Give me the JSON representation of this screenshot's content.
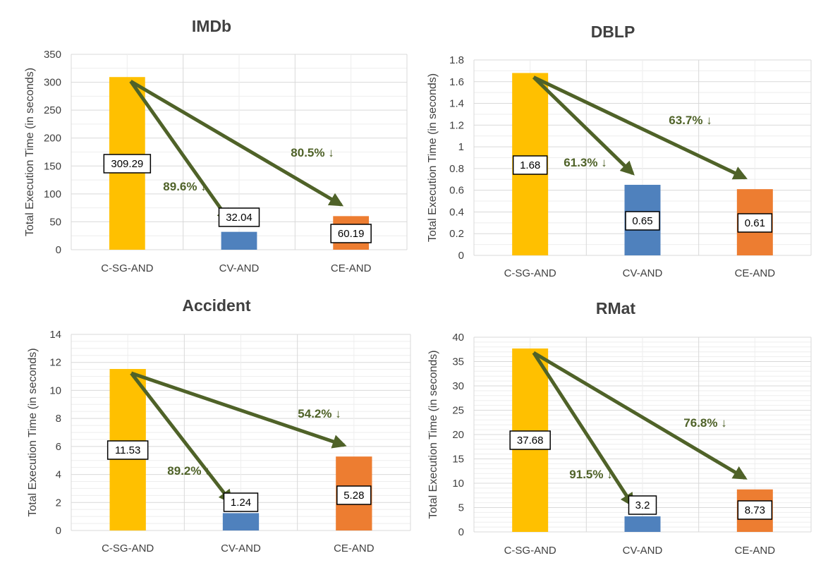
{
  "colors": {
    "c_sg_and": "#FFC000",
    "cv_and": "#4F81BD",
    "ce_and": "#ED7D31",
    "arrow": "#4F6228",
    "grid": "#D9D9D9"
  },
  "chart_data": [
    {
      "type": "bar",
      "title": "IMDb",
      "ylabel": "Total Execution Time (in seconds)",
      "categories": [
        "C-SG-AND",
        "CV-AND",
        "CE-AND"
      ],
      "values": [
        309.29,
        32.04,
        60.19
      ],
      "value_labels": [
        "309.29",
        "32.04",
        "60.19"
      ],
      "ylim": [
        0,
        350
      ],
      "yticks": [
        0,
        50,
        100,
        150,
        200,
        250,
        300,
        350
      ],
      "ytick_labels": [
        "0",
        "50",
        "100",
        "150",
        "200",
        "250",
        "300",
        "350"
      ],
      "grid": true,
      "annotations": [
        "89.6% ↓",
        "80.5% ↓"
      ]
    },
    {
      "type": "bar",
      "title": "DBLP",
      "ylabel": "Total Execution Time (in seconds)",
      "categories": [
        "C-SG-AND",
        "CV-AND",
        "CE-AND"
      ],
      "values": [
        1.68,
        0.65,
        0.61
      ],
      "value_labels": [
        "1.68",
        "0.65",
        "0.61"
      ],
      "ylim": [
        0,
        1.8
      ],
      "yticks": [
        0,
        0.2,
        0.4,
        0.6,
        0.8,
        1,
        1.2,
        1.4,
        1.6,
        1.8
      ],
      "ytick_labels": [
        "0",
        "0.2",
        "0.4",
        "0.6",
        "0.8",
        "1",
        "1.2",
        "1.4",
        "1.6",
        "1.8"
      ],
      "grid": true,
      "annotations": [
        "61.3% ↓",
        "63.7% ↓"
      ]
    },
    {
      "type": "bar",
      "title": "Accident",
      "ylabel": "Total Execution Time (in seconds)",
      "categories": [
        "C-SG-AND",
        "CV-AND",
        "CE-AND"
      ],
      "values": [
        11.53,
        1.24,
        5.28
      ],
      "value_labels": [
        "11.53",
        "1.24",
        "5.28"
      ],
      "ylim": [
        0,
        14
      ],
      "yticks": [
        0,
        2,
        4,
        6,
        8,
        10,
        12,
        14
      ],
      "ytick_labels": [
        "0",
        "2",
        "4",
        "6",
        "8",
        "10",
        "12",
        "14"
      ],
      "grid": true,
      "annotations": [
        "89.2% ↓",
        "54.2% ↓"
      ]
    },
    {
      "type": "bar",
      "title": "RMat",
      "ylabel": "Total Execution Time (in seconds)",
      "categories": [
        "C-SG-AND",
        "CV-AND",
        "CE-AND"
      ],
      "values": [
        37.68,
        3.2,
        8.73
      ],
      "value_labels": [
        "37.68",
        "3.2",
        "8.73"
      ],
      "ylim": [
        0,
        40
      ],
      "yticks": [
        0,
        5,
        10,
        15,
        20,
        25,
        30,
        35,
        40
      ],
      "ytick_labels": [
        "0",
        "5",
        "10",
        "15",
        "20",
        "25",
        "30",
        "35",
        "40"
      ],
      "grid": true,
      "annotations": [
        "91.5% ↓",
        "76.8% ↓"
      ]
    }
  ]
}
